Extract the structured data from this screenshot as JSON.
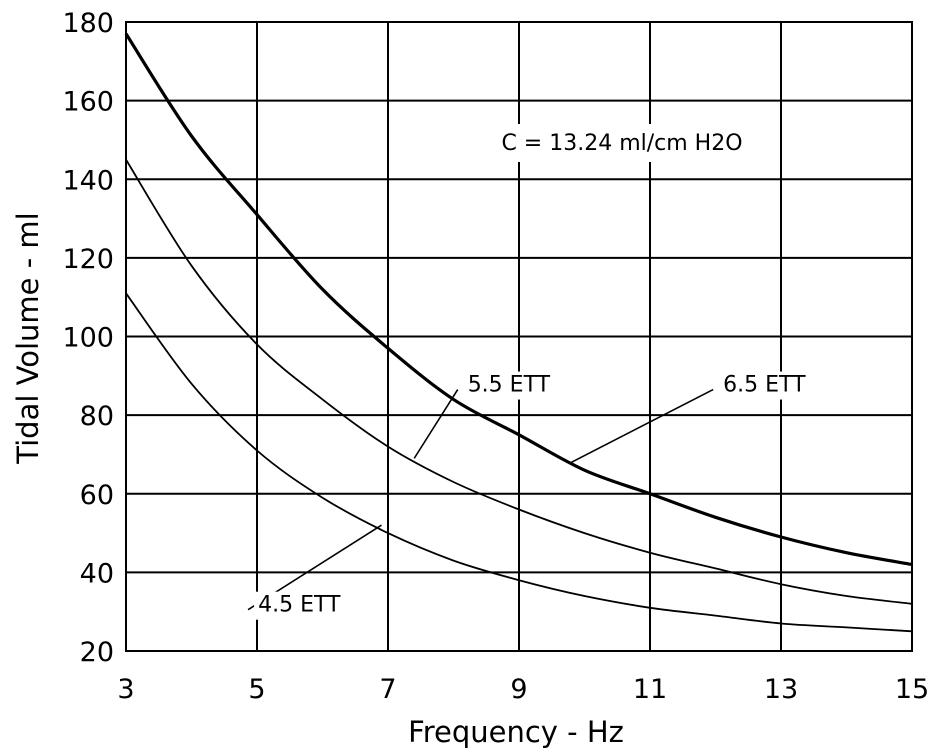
{
  "chart_data": {
    "type": "line",
    "xlabel": "Frequency - Hz",
    "ylabel": "Tidal Volume - ml",
    "xlim": [
      3,
      15
    ],
    "ylim": [
      20,
      180
    ],
    "x_ticks": [
      3,
      5,
      7,
      9,
      11,
      13,
      15
    ],
    "y_ticks": [
      20,
      40,
      60,
      80,
      100,
      120,
      140,
      160,
      180
    ],
    "grid": true,
    "annotations": [
      {
        "text": "C = 13.24 ml/cm H2O"
      }
    ],
    "series": [
      {
        "name": "6.5 ETT",
        "stroke_width": 3.2,
        "x": [
          3,
          4,
          5,
          6,
          7,
          8,
          9,
          10,
          11,
          12,
          13,
          14,
          15
        ],
        "values": [
          177,
          151,
          131,
          112,
          97,
          84,
          75,
          66,
          60,
          54,
          49,
          45,
          42
        ]
      },
      {
        "name": "5.5 ETT",
        "stroke_width": 1.8,
        "x": [
          3,
          4,
          5,
          6,
          7,
          8,
          9,
          10,
          11,
          12,
          13,
          14,
          15
        ],
        "values": [
          145,
          118,
          98,
          84,
          72,
          63,
          56,
          50,
          45,
          41,
          37,
          34,
          32
        ]
      },
      {
        "name": "4.5 ETT",
        "stroke_width": 1.8,
        "x": [
          3,
          4,
          5,
          6,
          7,
          8,
          9,
          10,
          11,
          12,
          13,
          14,
          15
        ],
        "values": [
          111,
          88,
          71,
          59,
          50,
          43,
          38,
          34,
          31,
          29,
          27,
          26,
          25
        ]
      }
    ],
    "labels": [
      {
        "text": "6.5 ETT",
        "series": "6.5 ETT",
        "x_text": 12.3,
        "y_text": 86,
        "x_pt": 9.8,
        "y_pt": 68
      },
      {
        "text": "5.5 ETT",
        "series": "5.5 ETT",
        "x_text": 8.4,
        "y_text": 86,
        "x_pt": 7.4,
        "y_pt": 69
      },
      {
        "text": "4.5 ETT",
        "series": "4.5 ETT",
        "x_text": 5.2,
        "y_text": 30,
        "x_pt": 6.9,
        "y_pt": 52
      }
    ]
  }
}
